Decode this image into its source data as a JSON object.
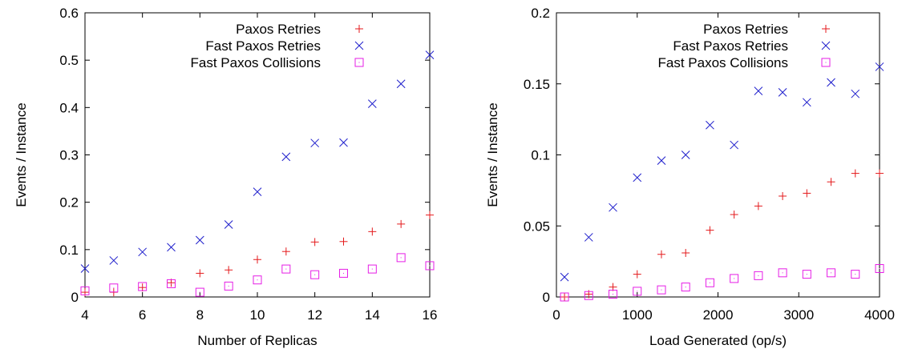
{
  "colors": {
    "paxos_retries": "#e41a1c",
    "fast_paxos_retries": "#1f1fcc",
    "fast_paxos_collisions": "#e61ee6",
    "axis": "#000000"
  },
  "chart_data": [
    {
      "type": "scatter",
      "xlabel": "Number of Replicas",
      "ylabel": "Events / Instance",
      "xlim": [
        4,
        16
      ],
      "ylim": [
        0,
        0.6
      ],
      "xticks": [
        "4",
        "6",
        "8",
        "10",
        "12",
        "14",
        "16"
      ],
      "xtick_values": [
        4,
        6,
        8,
        10,
        12,
        14,
        16
      ],
      "yticks": [
        "0",
        "0.1",
        "0.2",
        "0.3",
        "0.4",
        "0.5",
        "0.6"
      ],
      "ytick_values": [
        0,
        0.1,
        0.2,
        0.3,
        0.4,
        0.5,
        0.6
      ],
      "legend_position": "top-right",
      "series": [
        {
          "name": "Paxos Retries",
          "marker": "plus",
          "color_key": "paxos_retries",
          "x": [
            4,
            5,
            6,
            7,
            8,
            9,
            10,
            11,
            12,
            13,
            14,
            15,
            16
          ],
          "y": [
            0.01,
            0.01,
            0.02,
            0.03,
            0.05,
            0.057,
            0.079,
            0.096,
            0.116,
            0.117,
            0.138,
            0.154,
            0.173
          ]
        },
        {
          "name": "Fast Paxos Retries",
          "marker": "x",
          "color_key": "fast_paxos_retries",
          "x": [
            4,
            5,
            6,
            7,
            8,
            9,
            10,
            11,
            12,
            13,
            14,
            15,
            16
          ],
          "y": [
            0.06,
            0.077,
            0.095,
            0.105,
            0.12,
            0.153,
            0.222,
            0.296,
            0.325,
            0.326,
            0.408,
            0.45,
            0.511
          ]
        },
        {
          "name": "Fast Paxos Collisions",
          "marker": "square",
          "color_key": "fast_paxos_collisions",
          "x": [
            4,
            5,
            6,
            7,
            8,
            9,
            10,
            11,
            12,
            13,
            14,
            15,
            16
          ],
          "y": [
            0.013,
            0.019,
            0.022,
            0.028,
            0.01,
            0.023,
            0.036,
            0.059,
            0.047,
            0.05,
            0.059,
            0.083,
            0.066
          ]
        }
      ]
    },
    {
      "type": "scatter",
      "xlabel": "Load Generated (op/s)",
      "ylabel": "Events / Instance",
      "xlim": [
        0,
        4000
      ],
      "ylim": [
        0,
        0.2
      ],
      "xticks": [
        "0",
        "1000",
        "2000",
        "3000",
        "4000"
      ],
      "xtick_values": [
        0,
        1000,
        2000,
        3000,
        4000
      ],
      "yticks": [
        "0",
        "0.05",
        "0.1",
        "0.15",
        "0.2"
      ],
      "ytick_values": [
        0,
        0.05,
        0.1,
        0.15,
        0.2
      ],
      "legend_position": "top-right",
      "series": [
        {
          "name": "Paxos Retries",
          "marker": "plus",
          "color_key": "paxos_retries",
          "x": [
            100,
            400,
            700,
            1000,
            1300,
            1600,
            1900,
            2200,
            2500,
            2800,
            3100,
            3400,
            3700,
            4000
          ],
          "y": [
            0.0,
            0.002,
            0.007,
            0.016,
            0.03,
            0.031,
            0.047,
            0.058,
            0.064,
            0.071,
            0.073,
            0.081,
            0.087,
            0.087
          ]
        },
        {
          "name": "Fast Paxos Retries",
          "marker": "x",
          "color_key": "fast_paxos_retries",
          "x": [
            100,
            400,
            700,
            1000,
            1300,
            1600,
            1900,
            2200,
            2500,
            2800,
            3100,
            3400,
            3700,
            4000
          ],
          "y": [
            0.014,
            0.042,
            0.063,
            0.084,
            0.096,
            0.1,
            0.121,
            0.107,
            0.145,
            0.144,
            0.137,
            0.151,
            0.143,
            0.162
          ]
        },
        {
          "name": "Fast Paxos Collisions",
          "marker": "square",
          "color_key": "fast_paxos_collisions",
          "x": [
            100,
            400,
            700,
            1000,
            1300,
            1600,
            1900,
            2200,
            2500,
            2800,
            3100,
            3400,
            3700,
            4000
          ],
          "y": [
            0.0,
            0.001,
            0.002,
            0.004,
            0.005,
            0.007,
            0.01,
            0.013,
            0.015,
            0.017,
            0.016,
            0.017,
            0.016,
            0.02
          ]
        }
      ]
    }
  ]
}
